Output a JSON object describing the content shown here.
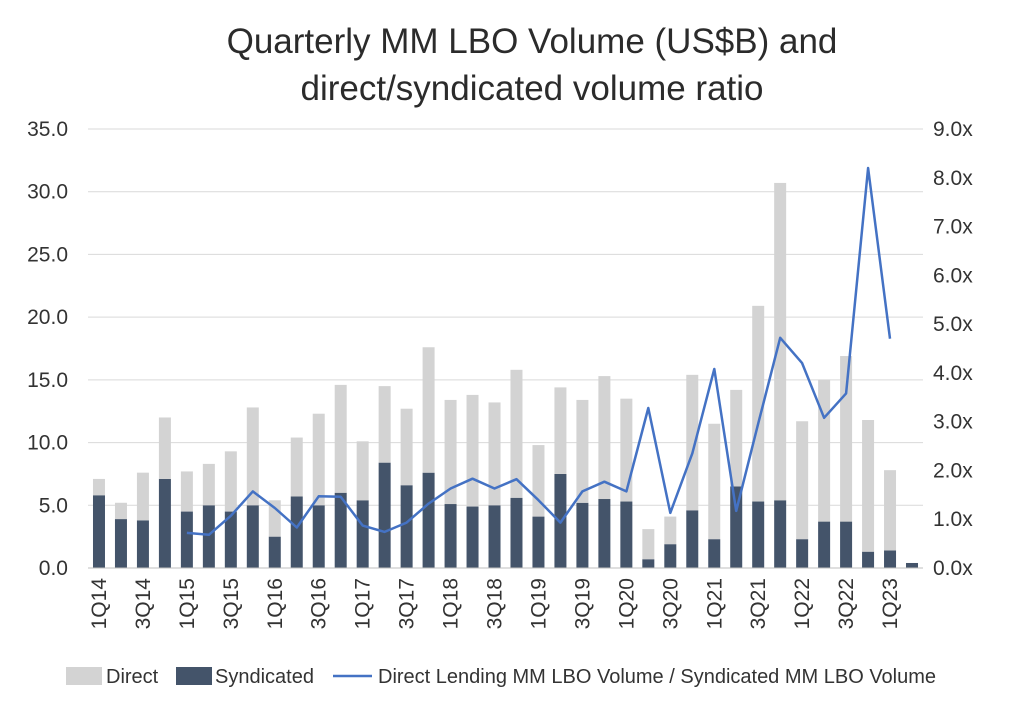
{
  "chart_data": {
    "type": "bar",
    "title": "Quarterly MM LBO Volume (US$B) and",
    "subtitle": "direct/syndicated volume ratio",
    "categories": [
      "1Q14",
      "2Q14",
      "3Q14",
      "4Q14",
      "1Q15",
      "2Q15",
      "3Q15",
      "4Q15",
      "1Q16",
      "2Q16",
      "3Q16",
      "4Q16",
      "1Q17",
      "2Q17",
      "3Q17",
      "4Q17",
      "1Q18",
      "2Q18",
      "3Q18",
      "4Q18",
      "1Q19",
      "2Q19",
      "3Q19",
      "4Q19",
      "1Q20",
      "2Q20",
      "3Q20",
      "4Q20",
      "1Q21",
      "2Q21",
      "3Q21",
      "4Q21",
      "1Q22",
      "2Q22",
      "3Q22",
      "4Q22",
      "1Q23",
      "2Q23"
    ],
    "x_tick_labels": [
      "1Q14",
      "3Q14",
      "1Q15",
      "3Q15",
      "1Q16",
      "3Q16",
      "1Q17",
      "3Q17",
      "1Q18",
      "3Q18",
      "1Q19",
      "3Q19",
      "1Q20",
      "3Q20",
      "1Q21",
      "3Q21",
      "1Q22",
      "3Q22",
      "1Q23"
    ],
    "series": [
      {
        "name": "Direct",
        "kind": "stacked-bar",
        "color": "#d3d3d3",
        "values": [
          1.3,
          1.3,
          3.8,
          4.9,
          3.2,
          3.3,
          4.8,
          7.8,
          2.9,
          4.7,
          7.3,
          8.6,
          4.7,
          6.1,
          6.1,
          10.0,
          8.3,
          8.9,
          8.2,
          10.2,
          5.7,
          6.9,
          8.2,
          9.8,
          8.2,
          2.4,
          2.2,
          10.8,
          9.2,
          7.7,
          15.6,
          25.3,
          9.4,
          11.3,
          13.2,
          10.5,
          6.4,
          0.0
        ]
      },
      {
        "name": "Syndicated",
        "kind": "stacked-bar",
        "color": "#44546a",
        "values": [
          5.8,
          3.9,
          3.8,
          7.1,
          4.5,
          5.0,
          4.5,
          5.0,
          2.5,
          5.7,
          5.0,
          6.0,
          5.4,
          8.4,
          6.6,
          7.6,
          5.1,
          4.9,
          5.0,
          5.6,
          4.1,
          7.5,
          5.2,
          5.5,
          5.3,
          0.7,
          1.9,
          4.6,
          2.3,
          6.5,
          5.3,
          5.4,
          2.3,
          3.7,
          3.7,
          1.3,
          1.4,
          0.4
        ]
      },
      {
        "name": "Direct Lending MM LBO Volume / Syndicated MM LBO Volume",
        "kind": "line",
        "axis": "right",
        "color": "#4472c4",
        "values": [
          null,
          null,
          null,
          null,
          0.72,
          0.68,
          1.07,
          1.57,
          1.23,
          0.83,
          1.47,
          1.46,
          0.87,
          0.74,
          0.93,
          1.32,
          1.63,
          1.83,
          1.63,
          1.82,
          1.39,
          0.93,
          1.57,
          1.77,
          1.57,
          3.28,
          1.13,
          2.35,
          4.08,
          1.17,
          2.96,
          4.72,
          4.2,
          3.08,
          3.58,
          8.2,
          4.7,
          null
        ]
      }
    ],
    "ylim": [
      0,
      35
    ],
    "y_ticks": [
      "0.0",
      "5.0",
      "10.0",
      "15.0",
      "20.0",
      "25.0",
      "30.0",
      "35.0"
    ],
    "y2lim": [
      0,
      9
    ],
    "y2_ticks": [
      "0.0x",
      "1.0x",
      "2.0x",
      "3.0x",
      "4.0x",
      "5.0x",
      "6.0x",
      "7.0x",
      "8.0x",
      "9.0x"
    ],
    "grid": true,
    "legend": "bottom"
  }
}
